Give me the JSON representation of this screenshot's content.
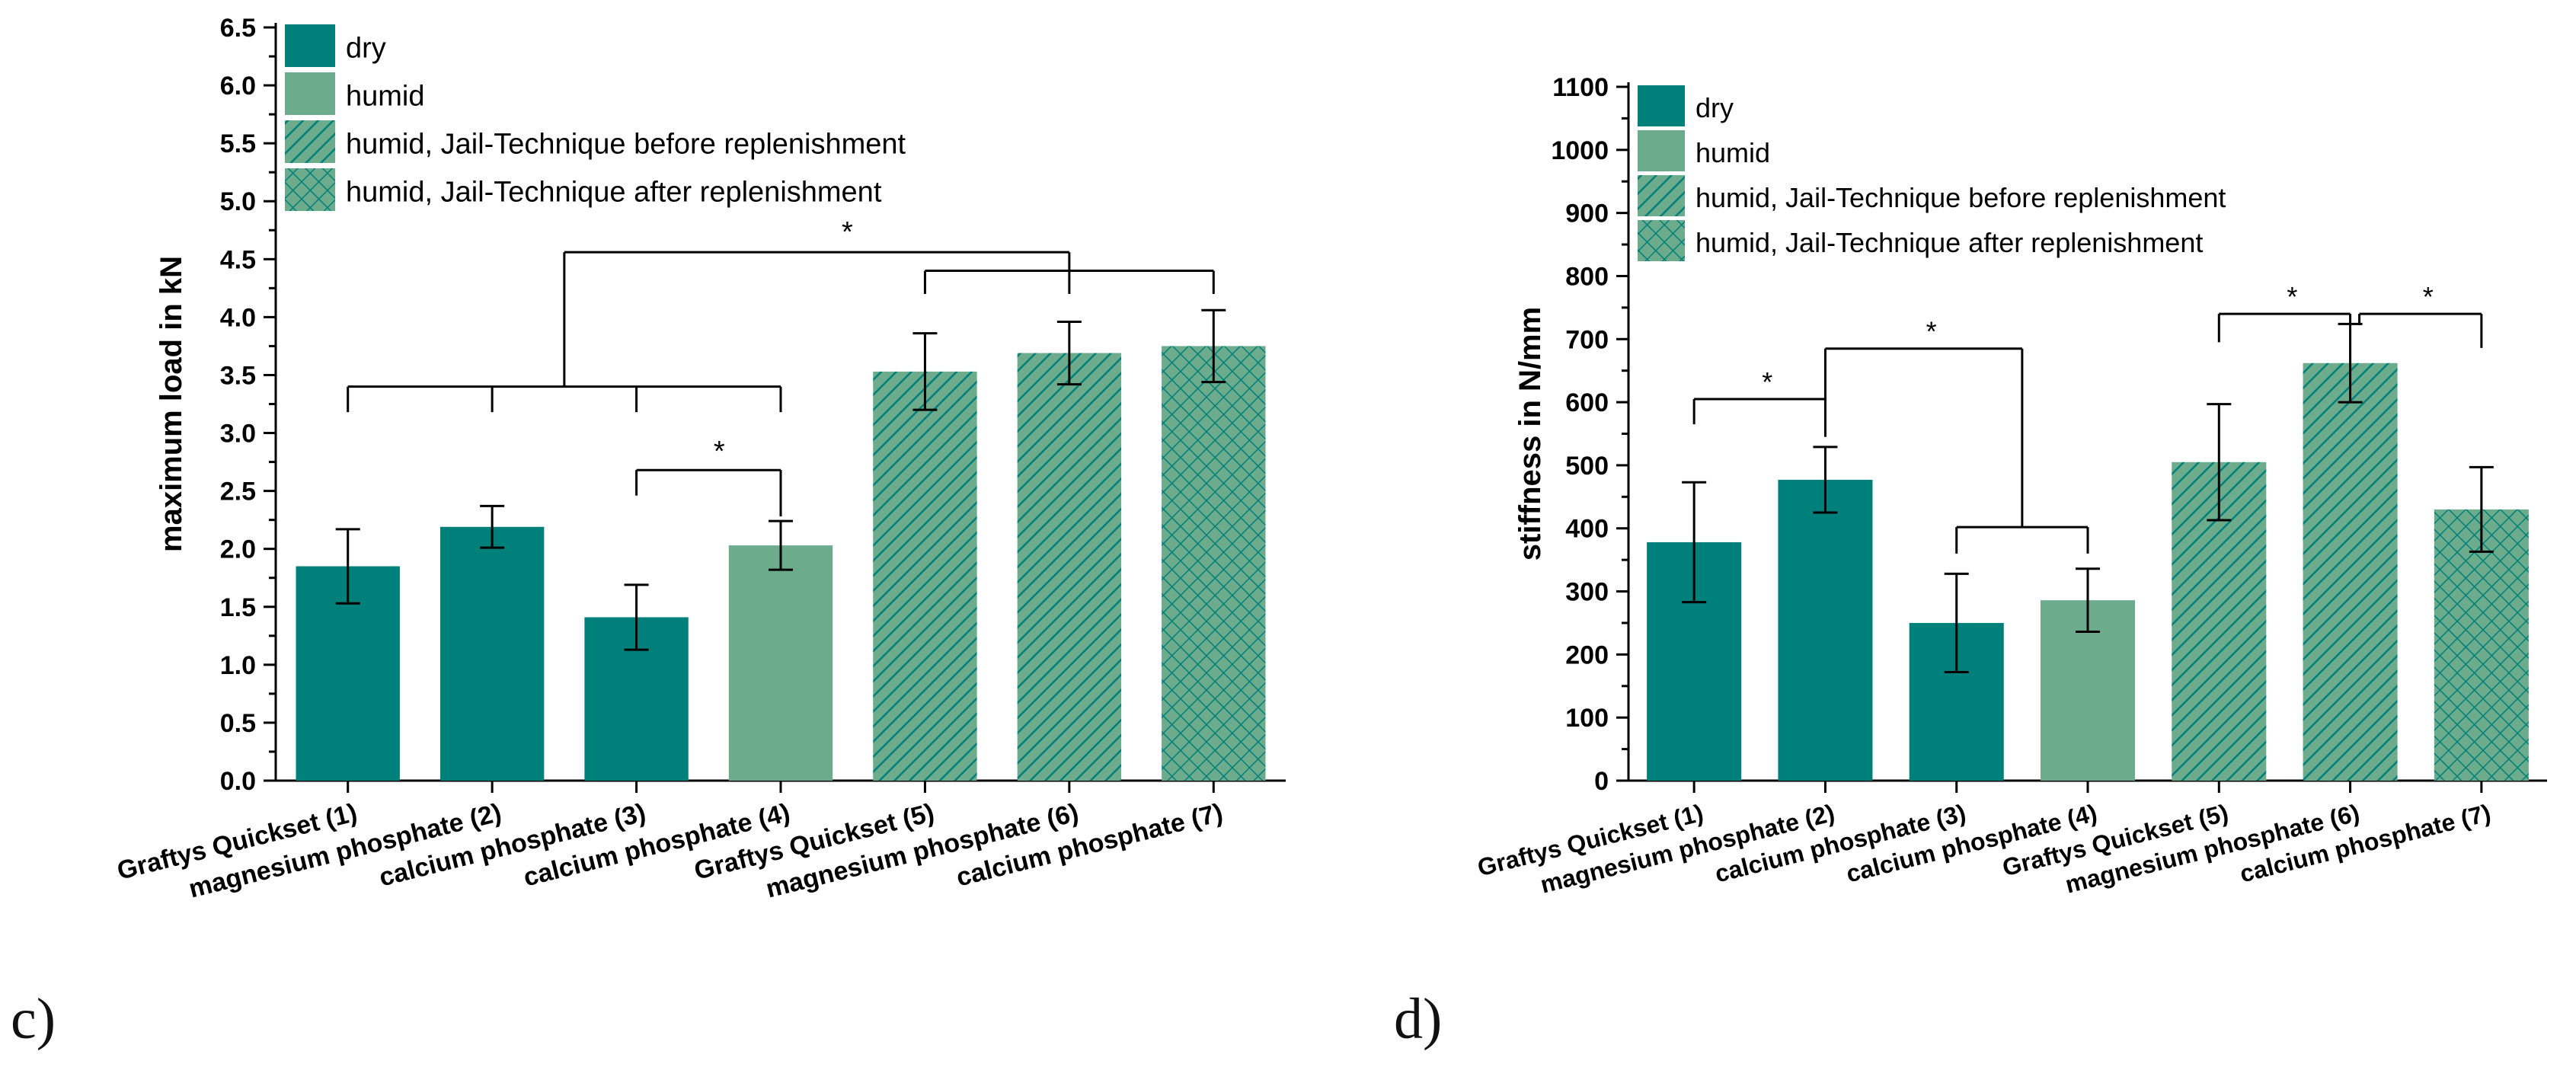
{
  "colors": {
    "dry": "#00807a",
    "humid": "#6cac8c",
    "axis": "#000000"
  },
  "panels": [
    {
      "label": "c)"
    },
    {
      "label": "d)"
    }
  ],
  "chart_data": [
    {
      "type": "bar",
      "panel": "c)",
      "ylabel": "maximum load in kN",
      "xlabel": "",
      "ylim": [
        0,
        6.5
      ],
      "yticks": [
        "0.0",
        "0.5",
        "1.0",
        "1.5",
        "2.0",
        "2.5",
        "3.0",
        "3.5",
        "4.0",
        "4.5",
        "5.0",
        "5.5",
        "6.0",
        "6.5"
      ],
      "categories": [
        "Graftys Quickset (1)",
        "magnesium phosphate (2)",
        "calcium phosphate (3)",
        "calcium phosphate (4)",
        "Graftys Quickset (5)",
        "magnesium phosphate (6)",
        "calcium phosphate (7)"
      ],
      "values": [
        1.85,
        2.19,
        1.41,
        2.03,
        3.53,
        3.69,
        3.75
      ],
      "errors": [
        0.32,
        0.18,
        0.28,
        0.21,
        0.33,
        0.27,
        0.31
      ],
      "conditions": [
        "dry",
        "dry",
        "dry",
        "humid",
        "humid, Jail-Technique before replenishment",
        "humid, Jail-Technique before replenishment",
        "humid, Jail-Technique after replenishment"
      ],
      "legend": {
        "position": "top-left",
        "entries": [
          {
            "name": "dry",
            "style": "dry"
          },
          {
            "name": "humid",
            "style": "humid"
          },
          {
            "name": "humid, Jail-Technique before replenishment",
            "style": "hatch"
          },
          {
            "name": "humid, Jail-Technique after replenishment",
            "style": "cross"
          }
        ]
      },
      "significance": [
        {
          "label": "*",
          "from": [
            1,
            2,
            3,
            4
          ],
          "to": [
            5,
            6,
            7
          ]
        },
        {
          "label": "*",
          "between": [
            3,
            4
          ]
        }
      ]
    },
    {
      "type": "bar",
      "panel": "d)",
      "ylabel": "stiffness in N/mm",
      "xlabel": "",
      "ylim": [
        0,
        1100
      ],
      "yticks": [
        "0",
        "100",
        "200",
        "300",
        "400",
        "500",
        "600",
        "700",
        "800",
        "900",
        "1000",
        "1100"
      ],
      "categories": [
        "Graftys Quickset (1)",
        "magnesium phosphate (2)",
        "calcium phosphate (3)",
        "calcium phosphate (4)",
        "Graftys Quickset (5)",
        "magnesium phosphate (6)",
        "calcium phosphate (7)"
      ],
      "values": [
        378,
        477,
        250,
        286,
        505,
        662,
        430
      ],
      "errors": [
        95,
        52,
        78,
        50,
        92,
        62,
        67
      ],
      "conditions": [
        "dry",
        "dry",
        "dry",
        "humid",
        "humid, Jail-Technique before replenishment",
        "humid, Jail-Technique before replenishment",
        "humid, Jail-Technique after replenishment"
      ],
      "legend": {
        "position": "top-left",
        "entries": [
          {
            "name": "dry",
            "style": "dry"
          },
          {
            "name": "humid",
            "style": "humid"
          },
          {
            "name": "humid, Jail-Technique before replenishment",
            "style": "hatch"
          },
          {
            "name": "humid, Jail-Technique after replenishment",
            "style": "cross"
          }
        ]
      },
      "significance": [
        {
          "label": "*",
          "between": [
            1,
            2
          ]
        },
        {
          "label": "*",
          "from": [
            2
          ],
          "to": [
            3,
            4
          ]
        },
        {
          "label": "*",
          "between": [
            5,
            6
          ]
        },
        {
          "label": "*",
          "between": [
            6,
            7
          ]
        }
      ]
    }
  ]
}
